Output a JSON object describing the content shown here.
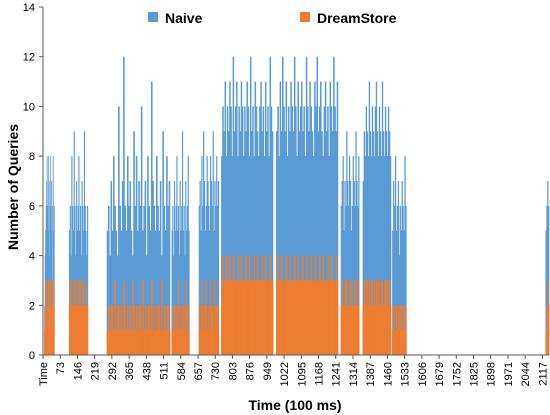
{
  "chart_data": {
    "type": "bar",
    "xlabel": "Time (100 ms)",
    "ylabel": "Number of Queries",
    "x_tick_labels": [
      "Time",
      "73",
      "146",
      "219",
      "292",
      "365",
      "438",
      "511",
      "584",
      "657",
      "730",
      "803",
      "876",
      "949",
      "1022",
      "1095",
      "1168",
      "1241",
      "1314",
      "1387",
      "1460",
      "1533",
      "1606",
      "1679",
      "1752",
      "1825",
      "1898",
      "1971",
      "2044",
      "2117"
    ],
    "x_tick_step": 73,
    "x_range": [
      0,
      2145
    ],
    "ylim": [
      0,
      14
    ],
    "y_ticks": [
      0,
      2,
      4,
      6,
      8,
      10,
      12,
      14
    ],
    "grid": false,
    "legend_position": "top-center",
    "stacked": true,
    "series": [
      {
        "name": "Naive",
        "color": "#5B9BD5",
        "segments": [
          {
            "start": 5,
            "end": 48,
            "values": [
              2,
              4,
              5,
              6,
              7,
              8,
              6,
              5,
              8,
              7,
              4,
              6,
              8,
              5,
              7,
              6,
              3,
              8,
              5,
              6
            ]
          },
          {
            "start": 110,
            "end": 190,
            "values": [
              5,
              6,
              4,
              8,
              6,
              5,
              9,
              6,
              4,
              7,
              5,
              6,
              8,
              5,
              6,
              4,
              7,
              6,
              5,
              9,
              6,
              5,
              4,
              6
            ]
          },
          {
            "start": 270,
            "end": 538,
            "values": [
              5,
              6,
              4,
              7,
              5,
              8,
              6,
              5,
              4,
              10,
              6,
              5,
              7,
              12,
              6,
              5,
              8,
              6,
              7,
              5,
              4,
              9,
              6,
              8,
              5,
              7,
              6,
              10,
              5,
              6,
              7,
              4,
              8,
              6,
              5,
              11,
              7,
              6,
              5,
              8,
              6,
              5,
              7,
              4,
              9,
              6,
              5,
              8,
              6,
              7
            ]
          },
          {
            "start": 545,
            "end": 620,
            "values": [
              5,
              6,
              4,
              7,
              5,
              6,
              8,
              5,
              6,
              4,
              7,
              5,
              6,
              9,
              5,
              6,
              4,
              7,
              5,
              6,
              8,
              5
            ]
          },
          {
            "start": 660,
            "end": 745,
            "values": [
              6,
              7,
              5,
              8,
              6,
              9,
              7,
              5,
              6,
              8,
              7,
              6,
              5,
              8,
              7,
              6,
              9,
              5,
              7,
              6,
              8,
              6,
              7
            ]
          },
          {
            "start": 755,
            "end": 975,
            "values": [
              8,
              10,
              9,
              11,
              8,
              10,
              9,
              11,
              10,
              8,
              12,
              9,
              10,
              11,
              8,
              10,
              9,
              11,
              10,
              8,
              10,
              9,
              11,
              10,
              8,
              12,
              9,
              10,
              8,
              11,
              10,
              9,
              8,
              10,
              11,
              9,
              10,
              8,
              11,
              9,
              10,
              8,
              12,
              10,
              9
            ]
          },
          {
            "start": 988,
            "end": 1250,
            "values": [
              9,
              10,
              8,
              11,
              9,
              12,
              10,
              9,
              11,
              8,
              10,
              9,
              11,
              10,
              9,
              12,
              10,
              8,
              11,
              9,
              10,
              11,
              9,
              10,
              8,
              12,
              10,
              9,
              11,
              10,
              9,
              8,
              11,
              10,
              12,
              9,
              10,
              11,
              9,
              8,
              10,
              11,
              9,
              10,
              8,
              11,
              10,
              9,
              12,
              10,
              9,
              11
            ]
          },
          {
            "start": 1262,
            "end": 1340,
            "values": [
              6,
              7,
              8,
              5,
              7,
              6,
              9,
              7,
              6,
              8,
              7,
              5,
              6,
              8,
              7,
              6,
              9,
              7,
              6,
              8
            ]
          },
          {
            "start": 1355,
            "end": 1475,
            "values": [
              7,
              9,
              8,
              10,
              9,
              8,
              11,
              9,
              8,
              10,
              9,
              8,
              10,
              11,
              9,
              8,
              10,
              9,
              8,
              11,
              9,
              8,
              10,
              9,
              8,
              10,
              9,
              8
            ]
          },
          {
            "start": 1480,
            "end": 1540,
            "values": [
              5,
              7,
              6,
              8,
              5,
              6,
              7,
              4,
              6,
              5,
              7,
              6,
              5,
              8,
              6
            ]
          },
          {
            "start": 2130,
            "end": 2145,
            "values": [
              5,
              6,
              7,
              6
            ]
          }
        ]
      },
      {
        "name": "DreamStore",
        "color": "#ED7D31",
        "segments": [
          {
            "start": 5,
            "end": 48,
            "values": [
              1,
              2,
              3,
              2,
              3,
              2,
              1,
              3,
              2,
              3,
              2,
              3,
              2,
              1,
              3,
              2,
              3,
              2,
              3,
              2
            ]
          },
          {
            "start": 110,
            "end": 190,
            "values": [
              2,
              3,
              2,
              3,
              2,
              2,
              3,
              2,
              3,
              2,
              2,
              3,
              2,
              3,
              2,
              2,
              3,
              2,
              3,
              2,
              2,
              3,
              2,
              2
            ]
          },
          {
            "start": 270,
            "end": 538,
            "values": [
              1,
              2,
              1,
              2,
              2,
              1,
              3,
              1,
              2,
              2,
              1,
              2,
              1,
              3,
              2,
              1,
              2,
              1,
              2,
              1,
              3,
              2,
              1,
              2,
              1,
              2,
              2,
              1,
              3,
              1,
              2,
              1,
              2,
              2,
              1,
              3,
              2,
              1,
              2,
              1,
              2,
              2,
              1,
              3,
              1,
              2,
              1,
              2,
              2,
              1
            ]
          },
          {
            "start": 545,
            "end": 620,
            "values": [
              1,
              2,
              1,
              2,
              1,
              2,
              2,
              1,
              3,
              1,
              2,
              1,
              2,
              1,
              2,
              2,
              1,
              3,
              1,
              2,
              1,
              2
            ]
          },
          {
            "start": 660,
            "end": 745,
            "values": [
              2,
              1,
              2,
              3,
              2,
              1,
              2,
              2,
              3,
              1,
              2,
              2,
              1,
              3,
              2,
              2,
              1,
              2,
              3,
              2,
              1,
              2,
              2
            ]
          },
          {
            "start": 755,
            "end": 975,
            "values": [
              3,
              4,
              3,
              3,
              4,
              3,
              3,
              4,
              3,
              3,
              4,
              3,
              3,
              3,
              4,
              3,
              3,
              4,
              3,
              3,
              3,
              4,
              3,
              3,
              4,
              3,
              3,
              3,
              4,
              3,
              3,
              4,
              3,
              3,
              3,
              4,
              3,
              3,
              4,
              3,
              3,
              3,
              4,
              3,
              3
            ]
          },
          {
            "start": 988,
            "end": 1250,
            "values": [
              3,
              4,
              3,
              3,
              4,
              3,
              3,
              3,
              4,
              3,
              3,
              4,
              3,
              3,
              3,
              4,
              3,
              3,
              4,
              3,
              3,
              3,
              4,
              3,
              3,
              4,
              3,
              3,
              3,
              4,
              3,
              3,
              4,
              3,
              3,
              3,
              4,
              3,
              3,
              4,
              3,
              3,
              3,
              4,
              3,
              3,
              4,
              3,
              3,
              3,
              4,
              3
            ]
          },
          {
            "start": 1262,
            "end": 1340,
            "values": [
              2,
              3,
              2,
              2,
              3,
              2,
              3,
              2,
              2,
              3,
              2,
              3,
              2,
              2,
              3,
              2,
              3,
              2,
              2,
              3
            ]
          },
          {
            "start": 1355,
            "end": 1475,
            "values": [
              2,
              3,
              2,
              3,
              3,
              2,
              3,
              2,
              3,
              3,
              2,
              3,
              2,
              3,
              3,
              2,
              3,
              2,
              3,
              3,
              2,
              3,
              2,
              3,
              3,
              2,
              3,
              2
            ]
          },
          {
            "start": 1480,
            "end": 1540,
            "values": [
              1,
              2,
              2,
              1,
              2,
              1,
              2,
              2,
              1,
              2,
              1,
              2,
              2,
              1,
              2
            ]
          },
          {
            "start": 2130,
            "end": 2145,
            "values": [
              1,
              2,
              3,
              2
            ]
          }
        ]
      }
    ]
  }
}
